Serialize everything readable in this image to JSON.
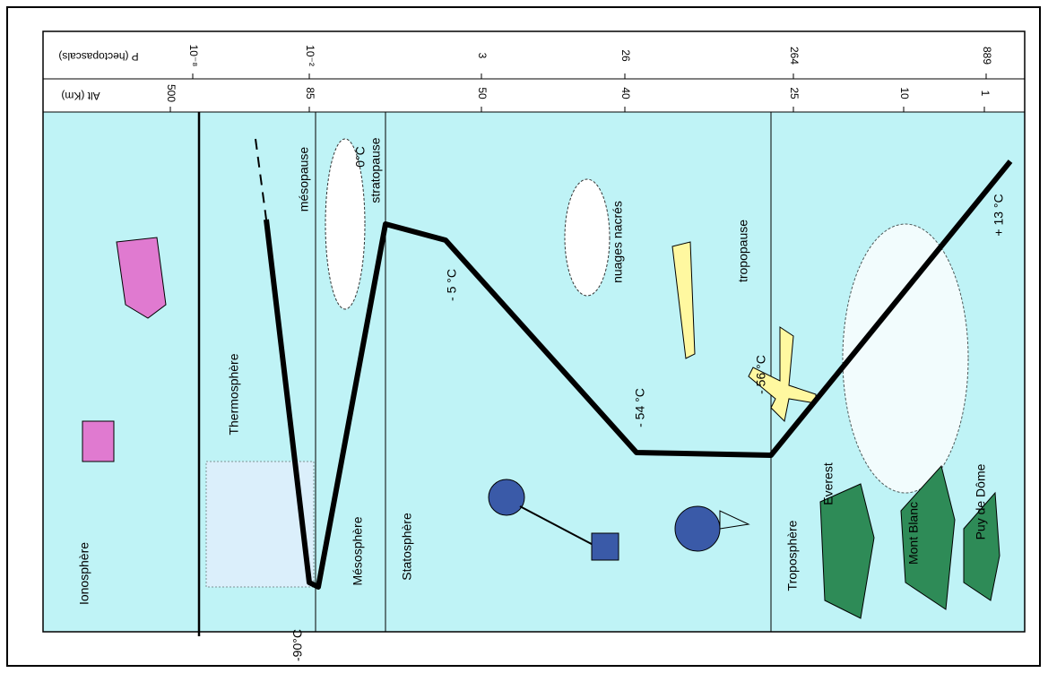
{
  "pressure_axis": {
    "label": "P (hectopascals)",
    "ticks": [
      "10⁻⁸",
      "10⁻²",
      "3",
      "26",
      "264",
      "889"
    ]
  },
  "altitude_axis": {
    "label": "Alt (Km)",
    "ticks": [
      "500",
      "85",
      "50",
      "40",
      "25",
      "10",
      "1"
    ]
  },
  "layers": [
    "Ionosphère",
    "Thermosphère",
    "Mésosphère",
    "Statosphère",
    "Troposphère"
  ],
  "boundaries": [
    "mésopause",
    "stratopause",
    "tropopause"
  ],
  "temperatures": [
    "-90°C",
    "0°C",
    "- 5 °C",
    "- 54 °C",
    "- 56 °C",
    "+ 13 °C"
  ],
  "features": [
    "nuages nacrés",
    "Everest",
    "Mont Blanc",
    "Puy de Dôme"
  ]
}
